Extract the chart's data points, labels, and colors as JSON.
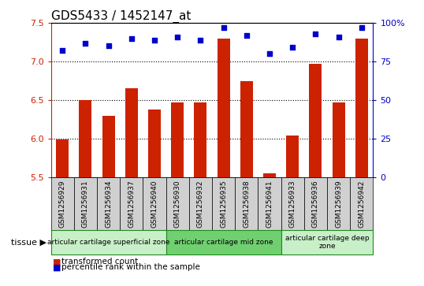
{
  "title": "GDS5433 / 1452147_at",
  "samples": [
    "GSM1256929",
    "GSM1256931",
    "GSM1256934",
    "GSM1256937",
    "GSM1256940",
    "GSM1256930",
    "GSM1256932",
    "GSM1256935",
    "GSM1256938",
    "GSM1256941",
    "GSM1256933",
    "GSM1256936",
    "GSM1256939",
    "GSM1256942"
  ],
  "bar_values": [
    5.99,
    6.5,
    6.3,
    6.65,
    6.38,
    6.47,
    6.47,
    7.3,
    6.75,
    5.55,
    6.04,
    6.97,
    6.47,
    7.3
  ],
  "percentile_values": [
    82,
    87,
    85,
    90,
    89,
    91,
    89,
    97,
    92,
    80,
    84,
    93,
    91,
    97
  ],
  "bar_bottom": 5.5,
  "ylim_left": [
    5.5,
    7.5
  ],
  "ylim_right": [
    0,
    100
  ],
  "yticks_left": [
    5.5,
    6.0,
    6.5,
    7.0,
    7.5
  ],
  "yticks_right": [
    0,
    25,
    50,
    75,
    100
  ],
  "ytick_labels_right": [
    "0",
    "25",
    "50",
    "75",
    "100%"
  ],
  "grid_lines": [
    6.0,
    6.5,
    7.0
  ],
  "bar_color": "#cc2200",
  "dot_color": "#0000cc",
  "plot_bg_color": "#ffffff",
  "xtick_bg_color": "#d0d0d0",
  "tissue_groups": [
    {
      "label": "articular cartilage superficial zone",
      "start": 0,
      "end": 5,
      "color": "#c8f0c8"
    },
    {
      "label": "articular cartilage mid zone",
      "start": 5,
      "end": 10,
      "color": "#70d070"
    },
    {
      "label": "articular cartilage deep\nzone",
      "start": 10,
      "end": 14,
      "color": "#c8f0c8"
    }
  ],
  "legend_bar_label": "transformed count",
  "legend_dot_label": "percentile rank within the sample",
  "tissue_label": "tissue",
  "ylabel_left_color": "#cc2200",
  "ylabel_right_color": "#0000cc",
  "title_fontsize": 11,
  "tick_fontsize": 8,
  "sample_fontsize": 6.5,
  "tissue_fontsize": 6.5,
  "legend_fontsize": 7.5
}
